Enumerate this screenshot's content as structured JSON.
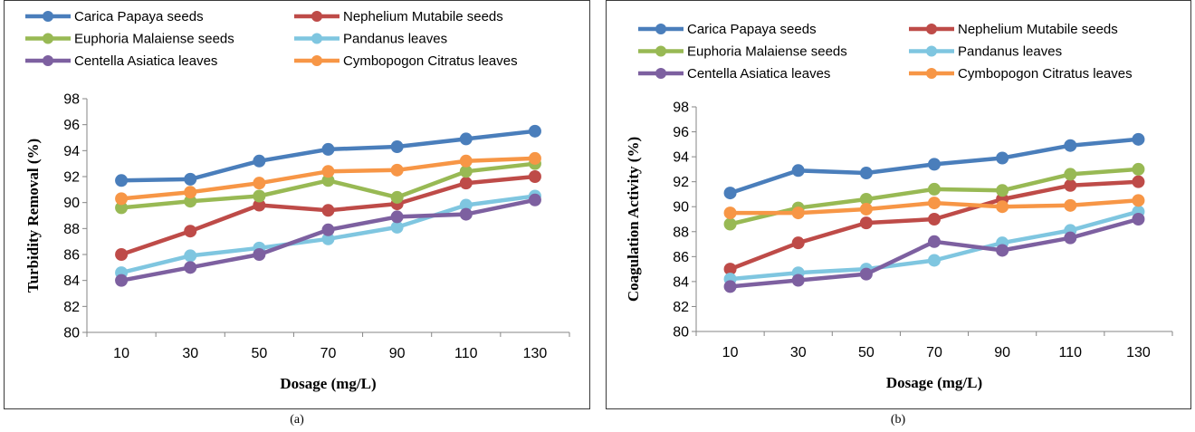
{
  "series_colors": [
    "#4a7ebb",
    "#be4b48",
    "#98b954",
    "#7fc6e0",
    "#7d60a0",
    "#f79646"
  ],
  "captions": [
    "(a)",
    "(b)"
  ],
  "chart_data": [
    {
      "type": "line",
      "title": "",
      "xlabel": "Dosage (mg/L)",
      "ylabel": "Turbidity Removal (%)",
      "categories": [
        "10",
        "30",
        "50",
        "70",
        "90",
        "110",
        "130"
      ],
      "ylim": [
        80,
        98
      ],
      "yticks": [
        "80",
        "82",
        "84",
        "86",
        "88",
        "90",
        "92",
        "94",
        "96",
        "98"
      ],
      "grid": false,
      "legend_position": "top",
      "series": [
        {
          "name": "Carica Papaya seeds",
          "values": [
            91.7,
            91.8,
            93.2,
            94.1,
            94.3,
            94.9,
            95.5
          ]
        },
        {
          "name": "Nephelium Mutabile seeds",
          "values": [
            86.0,
            87.8,
            89.8,
            89.4,
            89.9,
            91.5,
            92.0
          ]
        },
        {
          "name": "Euphoria Malaiense seeds",
          "values": [
            89.6,
            90.1,
            90.5,
            91.7,
            90.4,
            92.4,
            93.0
          ]
        },
        {
          "name": "Pandanus leaves",
          "values": [
            84.6,
            85.9,
            86.5,
            87.2,
            88.1,
            89.8,
            90.5
          ]
        },
        {
          "name": "Centella Asiatica leaves",
          "values": [
            84.0,
            85.0,
            86.0,
            87.9,
            88.9,
            89.1,
            90.2
          ]
        },
        {
          "name": "Cymbopogon Citratus leaves",
          "values": [
            90.3,
            90.8,
            91.5,
            92.4,
            92.5,
            93.2,
            93.4
          ]
        }
      ]
    },
    {
      "type": "line",
      "title": "",
      "xlabel": "Dosage (mg/L)",
      "ylabel": "Coagulation Activity (%)",
      "categories": [
        "10",
        "30",
        "50",
        "70",
        "90",
        "110",
        "130"
      ],
      "ylim": [
        80,
        98
      ],
      "yticks": [
        "80",
        "82",
        "84",
        "86",
        "88",
        "90",
        "92",
        "94",
        "96",
        "98"
      ],
      "grid": false,
      "legend_position": "top",
      "series": [
        {
          "name": "Carica Papaya seeds",
          "values": [
            91.1,
            92.9,
            92.7,
            93.4,
            93.9,
            94.9,
            95.4
          ]
        },
        {
          "name": "Nephelium Mutabile seeds",
          "values": [
            85.0,
            87.1,
            88.7,
            89.0,
            90.6,
            91.7,
            92.0
          ]
        },
        {
          "name": "Euphoria Malaiense seeds",
          "values": [
            88.6,
            89.9,
            90.6,
            91.4,
            91.3,
            92.6,
            93.0
          ]
        },
        {
          "name": "Pandanus leaves",
          "values": [
            84.2,
            84.7,
            85.0,
            85.7,
            87.1,
            88.1,
            89.6
          ]
        },
        {
          "name": "Centella Asiatica leaves",
          "values": [
            83.6,
            84.1,
            84.6,
            87.2,
            86.5,
            87.5,
            89.0
          ]
        },
        {
          "name": "Cymbopogon Citratus leaves",
          "values": [
            89.5,
            89.5,
            89.8,
            90.3,
            90.0,
            90.1,
            90.5
          ]
        }
      ]
    }
  ]
}
